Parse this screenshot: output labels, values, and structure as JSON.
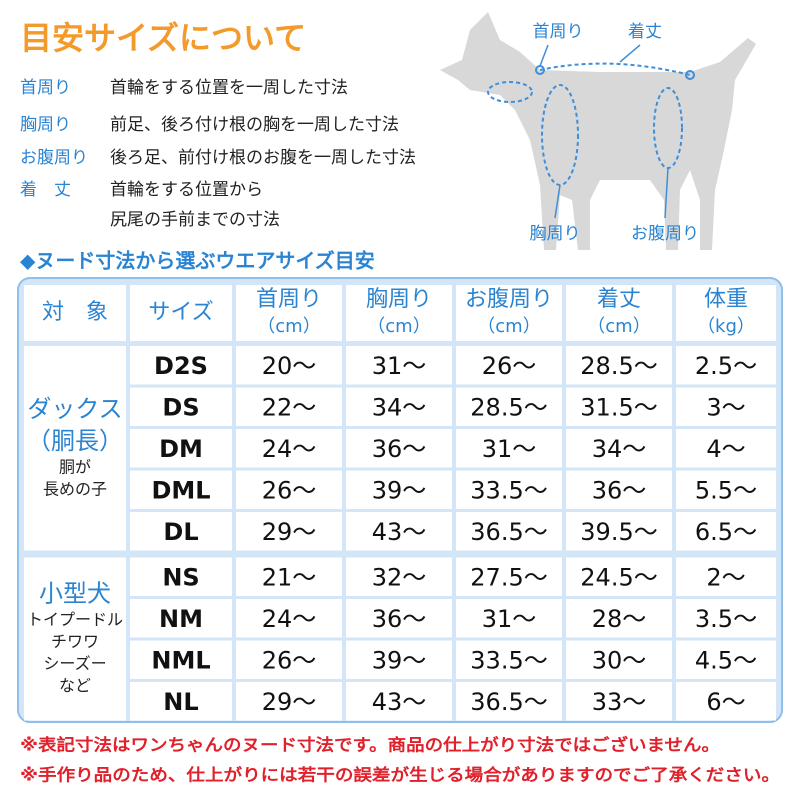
{
  "title": "目安サイズについて",
  "definitions": [
    {
      "term": "首周り",
      "text": [
        "首輪をする位置を一周した寸法"
      ]
    },
    {
      "term": "胸周り",
      "text": [
        "前足、後ろ付け根の胸を一周した寸法"
      ]
    },
    {
      "term": "お腹周り",
      "text": [
        "後ろ足、前付け根のお腹を一周した寸法"
      ]
    },
    {
      "term": "着　丈",
      "text": [
        "首輪をする位置から",
        "尻尾の手前までの寸法"
      ]
    }
  ],
  "diagram": {
    "neck": "首周り",
    "length": "着丈",
    "chest": "胸周り",
    "belly": "お腹周り"
  },
  "table": {
    "heading": "◆ヌード寸法から選ぶウエアサイズ目安",
    "columns": [
      {
        "name": "対　象"
      },
      {
        "name": "サイズ"
      },
      {
        "name": "首周り",
        "unit": "（cm）"
      },
      {
        "name": "胸周り",
        "unit": "（cm）"
      },
      {
        "name": "お腹周り",
        "unit": "（cm）"
      },
      {
        "name": "着丈",
        "unit": "（cm）"
      },
      {
        "name": "体重",
        "unit": "（kg）"
      }
    ],
    "groups": [
      {
        "name": [
          "ダックス",
          "（胴長）"
        ],
        "note": [
          "胴が",
          "長めの子"
        ],
        "rows": [
          [
            "D2S",
            "20〜",
            "31〜",
            "26〜",
            "28.5〜",
            "2.5〜"
          ],
          [
            "DS",
            "22〜",
            "34〜",
            "28.5〜",
            "31.5〜",
            "3〜"
          ],
          [
            "DM",
            "24〜",
            "36〜",
            "31〜",
            "34〜",
            "4〜"
          ],
          [
            "DML",
            "26〜",
            "39〜",
            "33.5〜",
            "36〜",
            "5.5〜"
          ],
          [
            "DL",
            "29〜",
            "43〜",
            "36.5〜",
            "39.5〜",
            "6.5〜"
          ]
        ]
      },
      {
        "name": [
          "小型犬"
        ],
        "note": [
          "トイプードル",
          "チワワ",
          "シーズー",
          "など"
        ],
        "rows": [
          [
            "NS",
            "21〜",
            "32〜",
            "27.5〜",
            "24.5〜",
            "2〜"
          ],
          [
            "NM",
            "24〜",
            "36〜",
            "31〜",
            "28〜",
            "3.5〜"
          ],
          [
            "NML",
            "26〜",
            "39〜",
            "33.5〜",
            "30〜",
            "4.5〜"
          ],
          [
            "NL",
            "29〜",
            "43〜",
            "36.5〜",
            "33〜",
            "6〜"
          ]
        ]
      }
    ]
  },
  "notes": [
    "※表記寸法はワンちゃんのヌード寸法です。商品の仕上がり寸法ではございません。",
    "※手作り品のため、仕上がりには若干の誤差が生じる場合がありますのでご了承ください。"
  ]
}
